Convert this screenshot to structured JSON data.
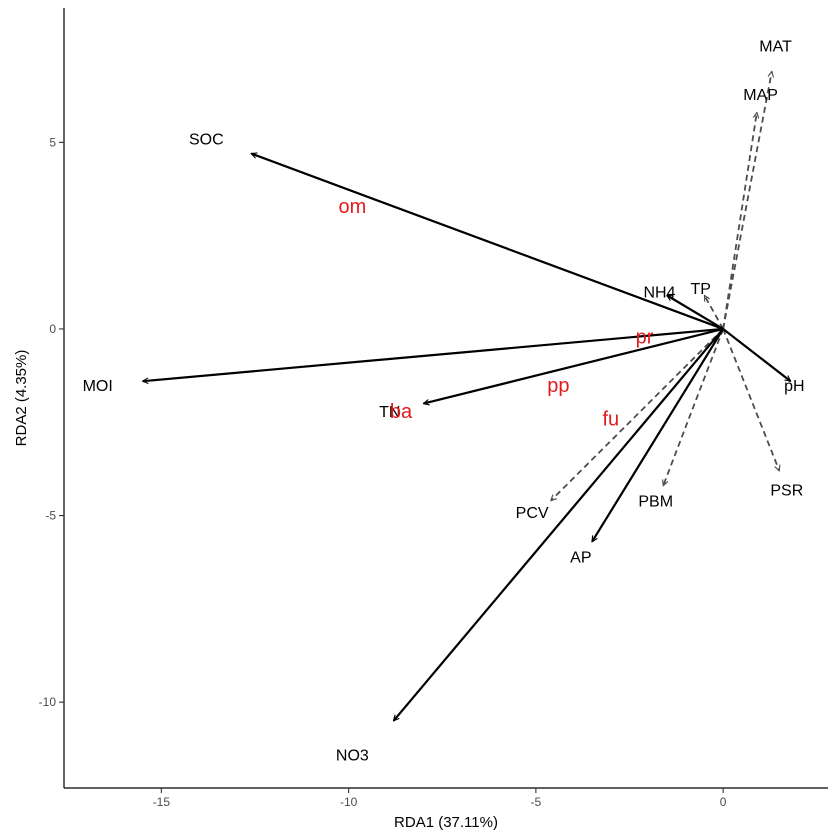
{
  "chart_data": {
    "type": "scatter",
    "subtype": "rda-biplot",
    "xlabel": "RDA1 (37.11%)",
    "ylabel": "RDA2 (4.35%)",
    "xlim": [
      -17.6,
      2.8
    ],
    "ylim": [
      -12.3,
      8.6
    ],
    "x_ticks": [
      -15,
      -10,
      -5,
      0
    ],
    "x_tick_labels": [
      "-15",
      "-10",
      "-5",
      "0"
    ],
    "y_ticks": [
      -10,
      -5,
      0,
      5
    ],
    "y_tick_labels": [
      "-10",
      "-5",
      "0",
      "5"
    ],
    "grid": false,
    "legend": "none",
    "colors": {
      "solid_arrow": "#000000",
      "dashed_arrow": "#4d4d4d",
      "species_label": "#e31a1c",
      "axis": "#000000"
    },
    "arrows": [
      {
        "name": "SOC",
        "x": -12.6,
        "y": 4.7,
        "style": "solid",
        "label_x": -13.8,
        "label_y": 5.1
      },
      {
        "name": "MOI",
        "x": -15.5,
        "y": -1.4,
        "style": "solid",
        "label_x": -16.7,
        "label_y": -1.5
      },
      {
        "name": "TN",
        "x": -8.0,
        "y": -2.0,
        "style": "solid",
        "label_x": -8.9,
        "label_y": -2.2
      },
      {
        "name": "NH4",
        "x": -1.5,
        "y": 0.9,
        "style": "solid",
        "label_x": -1.7,
        "label_y": 1.0
      },
      {
        "name": "pH",
        "x": 1.8,
        "y": -1.4,
        "style": "solid",
        "label_x": 1.9,
        "label_y": -1.5
      },
      {
        "name": "AP",
        "x": -3.5,
        "y": -5.7,
        "style": "solid",
        "label_x": -3.8,
        "label_y": -6.1
      },
      {
        "name": "NO3",
        "x": -8.8,
        "y": -10.5,
        "style": "solid",
        "label_x": -9.9,
        "label_y": -11.4
      },
      {
        "name": "TP",
        "x": -0.5,
        "y": 0.9,
        "style": "dashed",
        "label_x": -0.6,
        "label_y": 1.1
      },
      {
        "name": "MAP",
        "x": 0.9,
        "y": 5.8,
        "style": "dashed",
        "label_x": 1.0,
        "label_y": 6.3
      },
      {
        "name": "MAT",
        "x": 1.3,
        "y": 6.9,
        "style": "dashed",
        "label_x": 1.4,
        "label_y": 7.6
      },
      {
        "name": "PSR",
        "x": 1.5,
        "y": -3.8,
        "style": "dashed",
        "label_x": 1.7,
        "label_y": -4.3
      },
      {
        "name": "PBM",
        "x": -1.6,
        "y": -4.2,
        "style": "dashed",
        "label_x": -1.8,
        "label_y": -4.6
      },
      {
        "name": "PCV",
        "x": -4.6,
        "y": -4.6,
        "style": "dashed",
        "label_x": -5.1,
        "label_y": -4.9
      }
    ],
    "species": [
      {
        "name": "om",
        "x": -9.9,
        "y": 3.3
      },
      {
        "name": "pr",
        "x": -2.1,
        "y": -0.2
      },
      {
        "name": "pp",
        "x": -4.4,
        "y": -1.5
      },
      {
        "name": "fu",
        "x": -3.0,
        "y": -2.4
      },
      {
        "name": "ba",
        "x": -8.6,
        "y": -2.2
      }
    ]
  }
}
